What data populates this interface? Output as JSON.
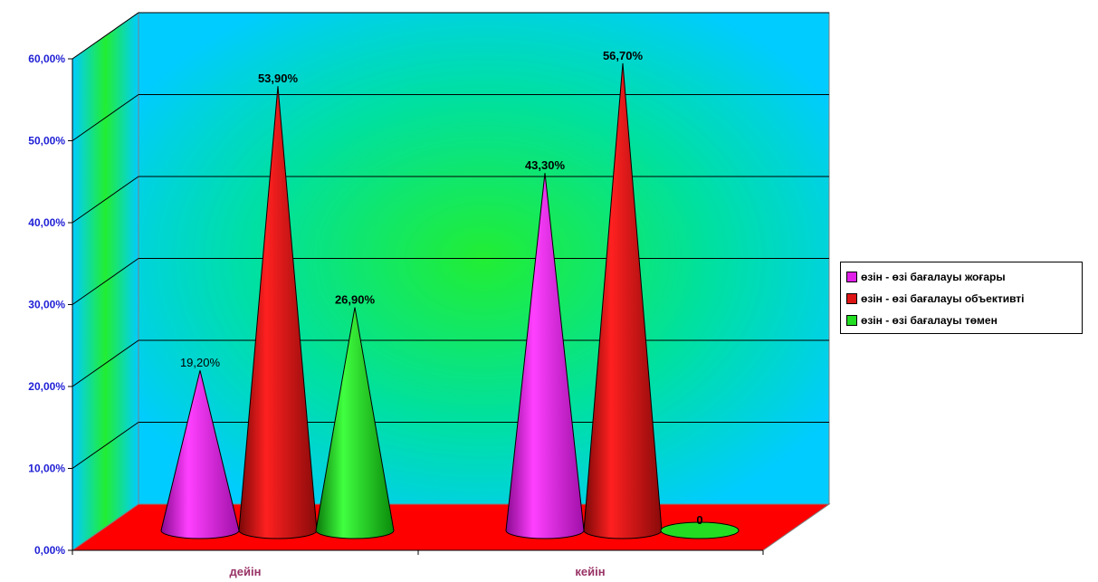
{
  "chart_data": {
    "type": "bar",
    "bar_shape": "cone",
    "three_d": true,
    "categories": [
      "дейін",
      "кейін"
    ],
    "series": [
      {
        "name": "өзін - өзі бағалауы жоғары",
        "values": [
          0.192,
          0.433
        ],
        "labels": [
          "19,20%",
          "43,30%"
        ],
        "color": "#e020e8"
      },
      {
        "name": "өзін - өзі бағалауы объективті",
        "values": [
          0.539,
          0.567
        ],
        "labels": [
          "53,90%",
          "56,70%"
        ],
        "color": "#dd1515"
      },
      {
        "name": "өзін - өзі бағалауы төмен",
        "values": [
          0.269,
          0
        ],
        "labels": [
          "26,90%",
          "0"
        ],
        "color": "#22dd22"
      }
    ],
    "yticks": [
      "0,00%",
      "10,00%",
      "20,00%",
      "30,00%",
      "40,00%",
      "50,00%",
      "60,00%"
    ],
    "ylim": [
      0,
      0.6
    ],
    "grid": true,
    "legend_position": "right",
    "colors": {
      "wall": "#00ccff",
      "wall_center": "#22ee33",
      "floor": "#ff0000",
      "tick_label": "#1f1fd6",
      "category_label": "#993366"
    }
  }
}
